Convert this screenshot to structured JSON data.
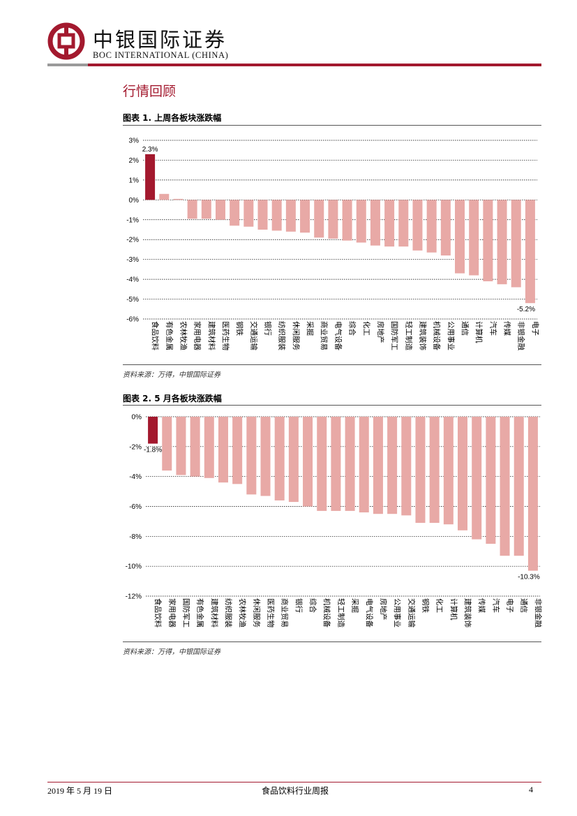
{
  "header": {
    "title_cn": "中银国际证券",
    "title_en": "BOC INTERNATIONAL (CHINA)"
  },
  "section_title": "行情回顾",
  "figures": [
    {
      "title": "图表 1. 上周各板块涨跌幅",
      "source": "资料来源：万得，中银国际证券"
    },
    {
      "title": "图表 2. 5 月各板块涨跌幅",
      "source": "资料来源：万得，中银国际证券"
    }
  ],
  "chart_data": [
    {
      "type": "bar",
      "title": "图表 1. 上周各板块涨跌幅",
      "categories": [
        "食品饮料",
        "有色金属",
        "农林牧渔",
        "家用电器",
        "建筑材料",
        "医药生物",
        "钢铁",
        "交通运输",
        "银行",
        "纺织服装",
        "休闲服务",
        "采掘",
        "商业贸易",
        "电气设备",
        "综合",
        "化工",
        "房地产",
        "国防军工",
        "轻工制造",
        "建筑装饰",
        "机械设备",
        "公用事业",
        "通信",
        "计算机",
        "汽车",
        "传媒",
        "非银金融",
        "电子"
      ],
      "values": [
        2.3,
        0.3,
        0.05,
        -0.95,
        -0.95,
        -1.0,
        -1.3,
        -1.35,
        -1.5,
        -1.55,
        -1.6,
        -1.65,
        -1.9,
        -1.95,
        -2.05,
        -2.15,
        -2.3,
        -2.35,
        -2.35,
        -2.55,
        -2.65,
        -2.8,
        -3.7,
        -3.8,
        -4.1,
        -4.25,
        -4.4,
        -5.2
      ],
      "yticks": [
        "3%",
        "2%",
        "1%",
        "0%",
        "-1%",
        "-2%",
        "-3%",
        "-4%",
        "-5%",
        "-6%"
      ],
      "ylim": [
        -6,
        3
      ],
      "data_labels": {
        "first": "2.3%",
        "last": "-5.2%"
      },
      "highlight_color": "#a3192e",
      "bar_color": "#e8a9a6",
      "grid": true
    },
    {
      "type": "bar",
      "title": "图表 2. 5 月各板块涨跌幅",
      "categories": [
        "食品饮料",
        "家用电器",
        "国防军工",
        "有色金属",
        "建筑材料",
        "纺织服装",
        "农林牧渔",
        "休闲服务",
        "医药生物",
        "商业贸易",
        "银行",
        "综合",
        "机械设备",
        "轻工制造",
        "采掘",
        "电气设备",
        "房地产",
        "公用事业",
        "交通运输",
        "钢铁",
        "化工",
        "计算机",
        "建筑装饰",
        "传媒",
        "汽车",
        "电子",
        "通信",
        "非银金融"
      ],
      "values": [
        -1.8,
        -3.6,
        -3.9,
        -4.0,
        -4.1,
        -4.4,
        -4.5,
        -5.2,
        -5.3,
        -5.6,
        -5.7,
        -6.0,
        -6.3,
        -6.3,
        -6.3,
        -6.4,
        -6.5,
        -6.5,
        -6.6,
        -7.1,
        -7.1,
        -7.2,
        -7.6,
        -8.2,
        -8.5,
        -9.3,
        -9.3,
        -10.3
      ],
      "yticks": [
        "0%",
        "-2%",
        "-4%",
        "-6%",
        "-8%",
        "-10%",
        "-12%"
      ],
      "ylim": [
        -12,
        0
      ],
      "data_labels": {
        "first": "-1.8%",
        "last": "-10.3%"
      },
      "highlight_color": "#a3192e",
      "bar_color": "#e8a9a6",
      "grid": true
    }
  ],
  "footer": {
    "date": "2019 年 5 月 19 日",
    "report_name": "食品饮料行业周报",
    "page": "4"
  }
}
